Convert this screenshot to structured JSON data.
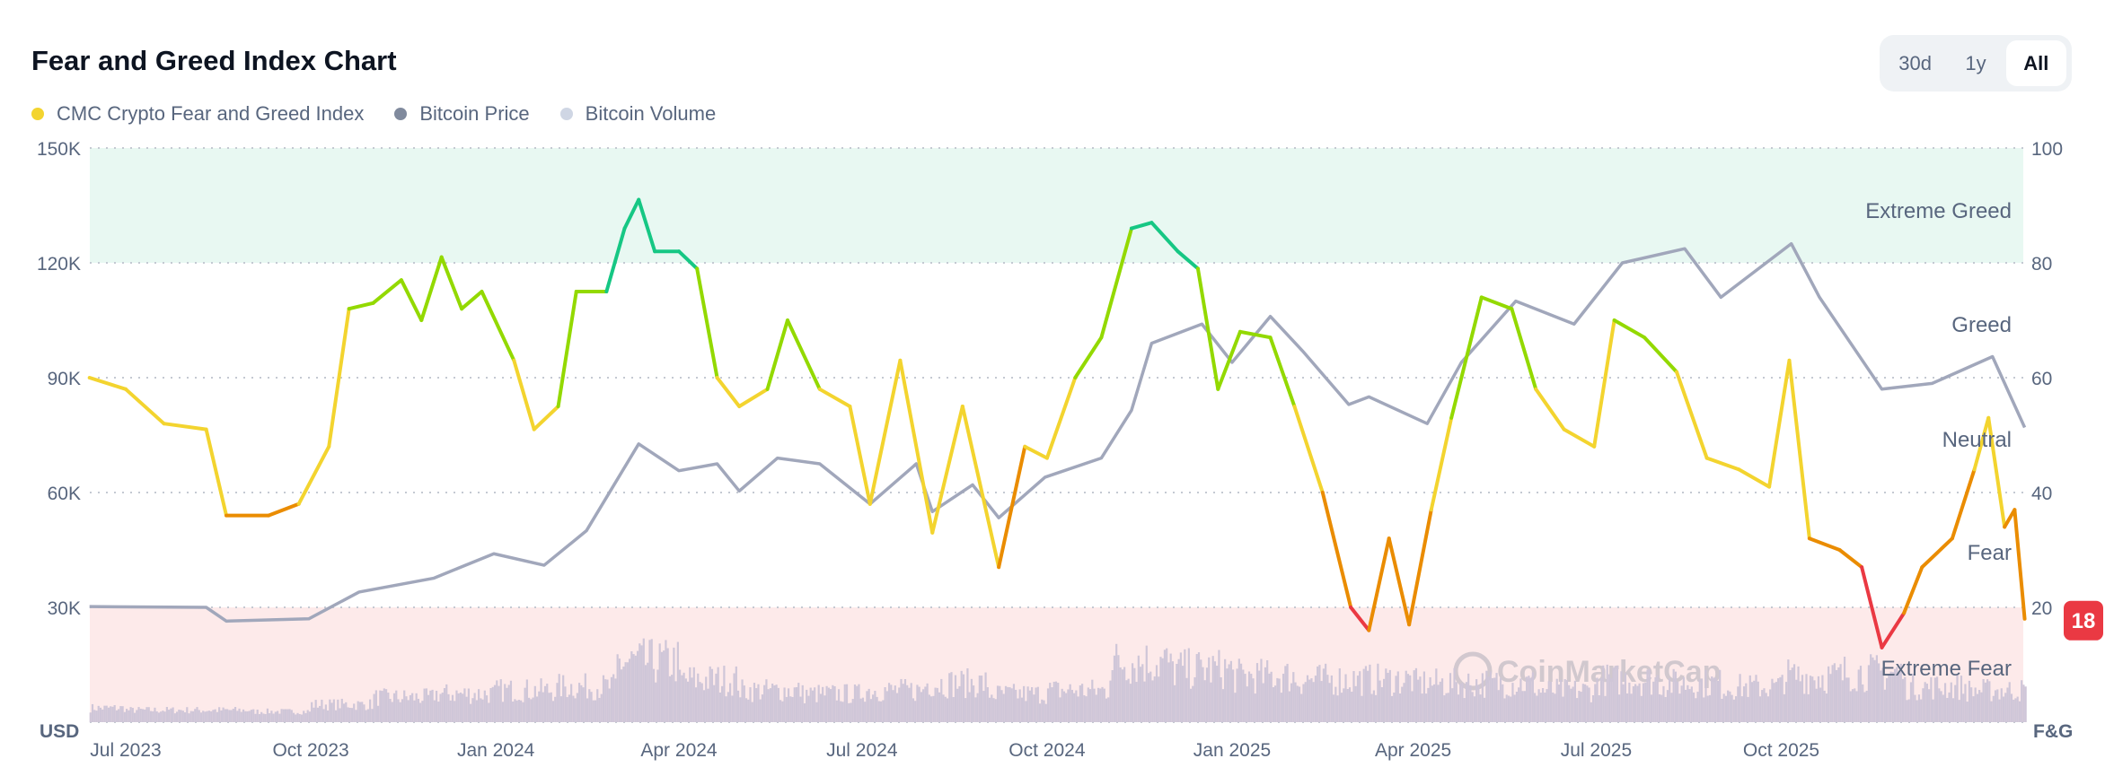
{
  "header": {
    "title": "Fear and Greed Index Chart"
  },
  "legend": [
    {
      "label": "CMC Crypto Fear and Greed Index",
      "color": "#f3d42f"
    },
    {
      "label": "Bitcoin Price",
      "color": "#808a9d"
    },
    {
      "label": "Bitcoin Volume",
      "color": "#cfd6e4"
    }
  ],
  "range_buttons": [
    {
      "label": "30d",
      "active": false
    },
    {
      "label": "1y",
      "active": false
    },
    {
      "label": "All",
      "active": true
    }
  ],
  "chart_data": {
    "type": "line",
    "title": "Fear and Greed Index Chart",
    "left_axis": {
      "unit_label": "USD",
      "ticks": [
        "150K",
        "120K",
        "90K",
        "60K",
        "30K"
      ],
      "tick_values": [
        150000,
        120000,
        90000,
        60000,
        30000
      ],
      "range": [
        0,
        150000
      ]
    },
    "right_axis": {
      "unit_label": "F&G",
      "ticks": [
        "100",
        "80",
        "60",
        "40",
        "20"
      ],
      "tick_values": [
        100,
        80,
        60,
        40,
        20
      ],
      "range": [
        0,
        100
      ]
    },
    "x_ticks": [
      "Jul 2023",
      "Oct 2023",
      "Jan 2024",
      "Apr 2024",
      "Jul 2024",
      "Oct 2024",
      "Jan 2025",
      "Apr 2025",
      "Jul 2025",
      "Oct 2025"
    ],
    "x_tick_dates": [
      "2023-07-01",
      "2023-10-01",
      "2024-01-01",
      "2024-04-01",
      "2024-07-01",
      "2024-10-01",
      "2025-01-01",
      "2025-04-01",
      "2025-07-01",
      "2025-10-01"
    ],
    "x_range": [
      "2023-06-13",
      "2026-01-30"
    ],
    "grid": "horizontal dotted",
    "zones": [
      {
        "label": "Extreme Greed",
        "from": 80,
        "to": 100,
        "fill": "#e8f8f2"
      },
      {
        "label": "Greed",
        "from": 60,
        "to": 80
      },
      {
        "label": "Neutral",
        "from": 40,
        "to": 60
      },
      {
        "label": "Fear",
        "from": 20,
        "to": 40
      },
      {
        "label": "Extreme Fear",
        "from": 0,
        "to": 20,
        "fill": "#fdeaea"
      }
    ],
    "zone_colors": {
      "extreme_fear": "#ea3943",
      "fear": "#ea8c00",
      "neutral": "#f3d42f",
      "greed": "#93d900",
      "extreme_greed": "#16c784"
    },
    "current_value": "18",
    "series": [
      {
        "name": "CMC Crypto Fear and Greed Index",
        "axis": "right",
        "points": [
          [
            "2023-06-13",
            60
          ],
          [
            "2023-07-01",
            58
          ],
          [
            "2023-07-20",
            52
          ],
          [
            "2023-08-10",
            51
          ],
          [
            "2023-08-20",
            36
          ],
          [
            "2023-09-10",
            36
          ],
          [
            "2023-09-25",
            38
          ],
          [
            "2023-10-10",
            48
          ],
          [
            "2023-10-20",
            72
          ],
          [
            "2023-11-01",
            73
          ],
          [
            "2023-11-15",
            77
          ],
          [
            "2023-11-25",
            70
          ],
          [
            "2023-12-05",
            81
          ],
          [
            "2023-12-15",
            72
          ],
          [
            "2023-12-25",
            75
          ],
          [
            "2024-01-10",
            63
          ],
          [
            "2024-01-20",
            51
          ],
          [
            "2024-02-01",
            55
          ],
          [
            "2024-02-10",
            75
          ],
          [
            "2024-02-25",
            75
          ],
          [
            "2024-03-05",
            86
          ],
          [
            "2024-03-12",
            91
          ],
          [
            "2024-03-20",
            82
          ],
          [
            "2024-04-01",
            82
          ],
          [
            "2024-04-10",
            79
          ],
          [
            "2024-04-20",
            60
          ],
          [
            "2024-05-01",
            55
          ],
          [
            "2024-05-15",
            58
          ],
          [
            "2024-05-25",
            70
          ],
          [
            "2024-06-10",
            58
          ],
          [
            "2024-06-25",
            55
          ],
          [
            "2024-07-05",
            38
          ],
          [
            "2024-07-20",
            63
          ],
          [
            "2024-08-05",
            33
          ],
          [
            "2024-08-20",
            55
          ],
          [
            "2024-09-07",
            27
          ],
          [
            "2024-09-20",
            48
          ],
          [
            "2024-10-01",
            46
          ],
          [
            "2024-10-15",
            60
          ],
          [
            "2024-10-28",
            67
          ],
          [
            "2024-11-12",
            86
          ],
          [
            "2024-11-22",
            87
          ],
          [
            "2024-12-05",
            82
          ],
          [
            "2024-12-15",
            79
          ],
          [
            "2024-12-25",
            58
          ],
          [
            "2025-01-05",
            68
          ],
          [
            "2025-01-20",
            67
          ],
          [
            "2025-02-01",
            55
          ],
          [
            "2025-02-15",
            40
          ],
          [
            "2025-03-01",
            20
          ],
          [
            "2025-03-10",
            16
          ],
          [
            "2025-03-20",
            32
          ],
          [
            "2025-03-30",
            17
          ],
          [
            "2025-04-10",
            37
          ],
          [
            "2025-04-20",
            53
          ],
          [
            "2025-05-05",
            74
          ],
          [
            "2025-05-20",
            72
          ],
          [
            "2025-06-01",
            58
          ],
          [
            "2025-06-15",
            51
          ],
          [
            "2025-06-30",
            48
          ],
          [
            "2025-07-10",
            70
          ],
          [
            "2025-07-25",
            67
          ],
          [
            "2025-08-10",
            61
          ],
          [
            "2025-08-25",
            46
          ],
          [
            "2025-09-10",
            44
          ],
          [
            "2025-09-25",
            41
          ],
          [
            "2025-10-05",
            63
          ],
          [
            "2025-10-15",
            32
          ],
          [
            "2025-10-30",
            30
          ],
          [
            "2025-11-10",
            27
          ],
          [
            "2025-11-20",
            13
          ],
          [
            "2025-12-01",
            19
          ],
          [
            "2025-12-10",
            27
          ],
          [
            "2025-12-25",
            32
          ],
          [
            "2026-01-05",
            44
          ],
          [
            "2026-01-12",
            53
          ],
          [
            "2026-01-20",
            34
          ],
          [
            "2026-01-25",
            37
          ],
          [
            "2026-01-30",
            18
          ]
        ]
      },
      {
        "name": "Bitcoin Price",
        "axis": "left",
        "color": "#a1a7bb",
        "points": [
          [
            "2023-06-13",
            30200
          ],
          [
            "2023-08-10",
            30000
          ],
          [
            "2023-08-20",
            26400
          ],
          [
            "2023-09-30",
            27000
          ],
          [
            "2023-10-25",
            34000
          ],
          [
            "2023-12-01",
            37600
          ],
          [
            "2023-12-31",
            44000
          ],
          [
            "2024-01-25",
            41000
          ],
          [
            "2024-02-15",
            50000
          ],
          [
            "2024-03-12",
            72700
          ],
          [
            "2024-04-01",
            65700
          ],
          [
            "2024-04-20",
            67500
          ],
          [
            "2024-05-01",
            60400
          ],
          [
            "2024-05-20",
            69000
          ],
          [
            "2024-06-10",
            67500
          ],
          [
            "2024-07-05",
            57000
          ],
          [
            "2024-07-28",
            67500
          ],
          [
            "2024-08-05",
            55000
          ],
          [
            "2024-08-25",
            62000
          ],
          [
            "2024-09-07",
            53400
          ],
          [
            "2024-09-30",
            64000
          ],
          [
            "2024-10-28",
            69000
          ],
          [
            "2024-11-12",
            81500
          ],
          [
            "2024-11-22",
            99000
          ],
          [
            "2024-12-17",
            104000
          ],
          [
            "2025-01-01",
            94000
          ],
          [
            "2025-01-20",
            106000
          ],
          [
            "2025-02-05",
            97000
          ],
          [
            "2025-02-28",
            83000
          ],
          [
            "2025-03-10",
            85000
          ],
          [
            "2025-04-08",
            78000
          ],
          [
            "2025-04-25",
            94000
          ],
          [
            "2025-05-22",
            110000
          ],
          [
            "2025-06-20",
            104000
          ],
          [
            "2025-07-14",
            120000
          ],
          [
            "2025-08-14",
            123700
          ],
          [
            "2025-09-01",
            111000
          ],
          [
            "2025-10-06",
            125000
          ],
          [
            "2025-10-20",
            111000
          ],
          [
            "2025-11-20",
            87000
          ],
          [
            "2025-12-15",
            88500
          ],
          [
            "2026-01-14",
            95500
          ],
          [
            "2026-01-30",
            77000
          ]
        ]
      },
      {
        "name": "Bitcoin Volume",
        "axis": "none",
        "color": "#cfc6d8",
        "monthly_relative": [
          [
            "2023-06",
            0.15
          ],
          [
            "2023-07",
            0.12
          ],
          [
            "2023-08",
            0.12
          ],
          [
            "2023-09",
            0.1
          ],
          [
            "2023-10",
            0.2
          ],
          [
            "2023-11",
            0.3
          ],
          [
            "2023-12",
            0.35
          ],
          [
            "2024-01",
            0.4
          ],
          [
            "2024-02",
            0.45
          ],
          [
            "2024-03",
            0.8
          ],
          [
            "2024-04",
            0.55
          ],
          [
            "2024-05",
            0.4
          ],
          [
            "2024-06",
            0.35
          ],
          [
            "2024-07",
            0.4
          ],
          [
            "2024-08",
            0.5
          ],
          [
            "2024-09",
            0.35
          ],
          [
            "2024-10",
            0.4
          ],
          [
            "2024-11",
            0.8
          ],
          [
            "2024-12",
            0.7
          ],
          [
            "2025-01",
            0.6
          ],
          [
            "2025-02",
            0.55
          ],
          [
            "2025-03",
            0.55
          ],
          [
            "2025-04",
            0.5
          ],
          [
            "2025-05",
            0.5
          ],
          [
            "2025-06",
            0.4
          ],
          [
            "2025-07",
            0.55
          ],
          [
            "2025-08",
            0.5
          ],
          [
            "2025-09",
            0.45
          ],
          [
            "2025-10",
            0.6
          ],
          [
            "2025-11",
            0.65
          ],
          [
            "2025-12",
            0.45
          ],
          [
            "2026-01",
            0.4
          ]
        ]
      }
    ]
  },
  "watermark": "CoinMarketCap"
}
